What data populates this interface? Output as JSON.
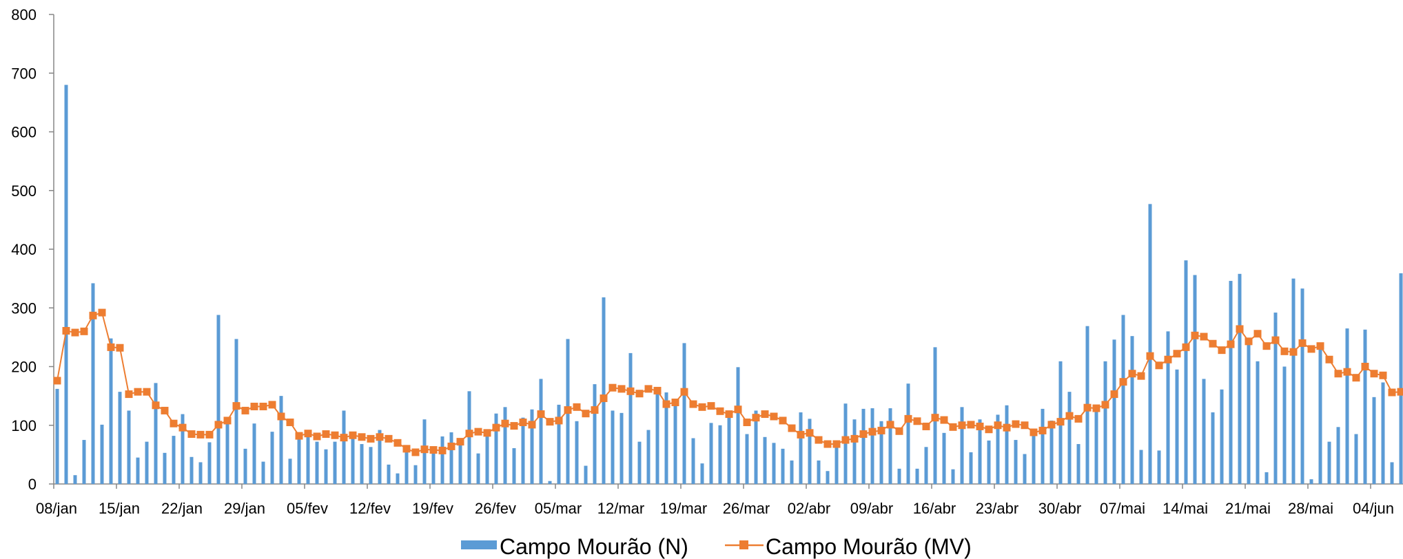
{
  "chart_data": {
    "type": "bar+line",
    "ylim": [
      0,
      800
    ],
    "y_ticks": [
      0,
      100,
      200,
      300,
      400,
      500,
      600,
      700,
      800
    ],
    "x_start_day": "08/jan",
    "x_tick_labels": [
      "08/jan",
      "15/jan",
      "22/jan",
      "29/jan",
      "05/fev",
      "12/fev",
      "19/fev",
      "26/fev",
      "05/mar",
      "12/mar",
      "19/mar",
      "26/mar",
      "02/abr",
      "09/abr",
      "16/abr",
      "23/abr",
      "30/abr",
      "07/mai",
      "14/mai",
      "21/mai",
      "28/mai",
      "04/jun"
    ],
    "legend_placement": "bottom-center",
    "grid": false,
    "series": [
      {
        "name": "Campo Mourão (N)",
        "kind": "bar",
        "color": "#5B9BD5",
        "values": [
          162,
          680,
          15,
          75,
          342,
          101,
          248,
          157,
          125,
          45,
          72,
          172,
          53,
          82,
          119,
          46,
          37,
          71,
          288,
          113,
          247,
          60,
          103,
          38,
          89,
          150,
          43,
          86,
          84,
          72,
          59,
          72,
          125,
          84,
          68,
          63,
          92,
          33,
          18,
          58,
          32,
          110,
          54,
          81,
          88,
          72,
          158,
          52,
          90,
          120,
          131,
          61,
          113,
          127,
          179,
          5,
          135,
          247,
          107,
          31,
          170,
          318,
          125,
          121,
          223,
          72,
          92,
          164,
          156,
          145,
          240,
          78,
          35,
          104,
          100,
          120,
          199,
          85,
          125,
          80,
          70,
          60,
          40,
          122,
          111,
          40,
          22,
          63,
          137,
          110,
          128,
          129,
          107,
          129,
          26,
          171,
          26,
          63,
          233,
          87,
          25,
          131,
          54,
          110,
          74,
          118,
          134,
          75,
          51,
          92,
          128,
          108,
          209,
          157,
          68,
          269,
          130,
          209,
          246,
          288,
          252,
          58,
          477,
          57,
          260,
          195,
          381,
          356,
          179,
          122,
          161,
          346,
          358,
          245,
          209,
          20,
          292,
          200,
          350,
          333,
          8,
          237,
          72,
          97,
          265,
          85,
          263,
          148,
          173,
          37,
          359
        ]
      },
      {
        "name": "Campo Mourão (MV)",
        "kind": "line",
        "color": "#ED7D31",
        "values": [
          176,
          261,
          258,
          260,
          287,
          292,
          233,
          232,
          153,
          157,
          157,
          134,
          125,
          103,
          96,
          85,
          84,
          84,
          101,
          108,
          133,
          125,
          132,
          132,
          135,
          115,
          105,
          82,
          86,
          81,
          85,
          83,
          79,
          83,
          80,
          77,
          80,
          77,
          70,
          60,
          54,
          59,
          58,
          57,
          64,
          72,
          86,
          89,
          87,
          96,
          103,
          99,
          105,
          101,
          119,
          106,
          108,
          126,
          131,
          120,
          126,
          146,
          164,
          162,
          158,
          154,
          162,
          159,
          136,
          139,
          157,
          136,
          131,
          133,
          124,
          119,
          127,
          105,
          113,
          119,
          115,
          108,
          95,
          84,
          87,
          75,
          68,
          68,
          75,
          77,
          85,
          89,
          91,
          101,
          90,
          111,
          107,
          98,
          113,
          109,
          97,
          100,
          101,
          98,
          93,
          100,
          96,
          102,
          100,
          88,
          91,
          101,
          106,
          116,
          111,
          130,
          129,
          135,
          153,
          174,
          188,
          184,
          218,
          202,
          212,
          222,
          233,
          253,
          251,
          239,
          228,
          238,
          264,
          243,
          256,
          235,
          245,
          226,
          225,
          240,
          230,
          235,
          212,
          188,
          191,
          181,
          200,
          188,
          185,
          156,
          157
        ]
      }
    ]
  }
}
